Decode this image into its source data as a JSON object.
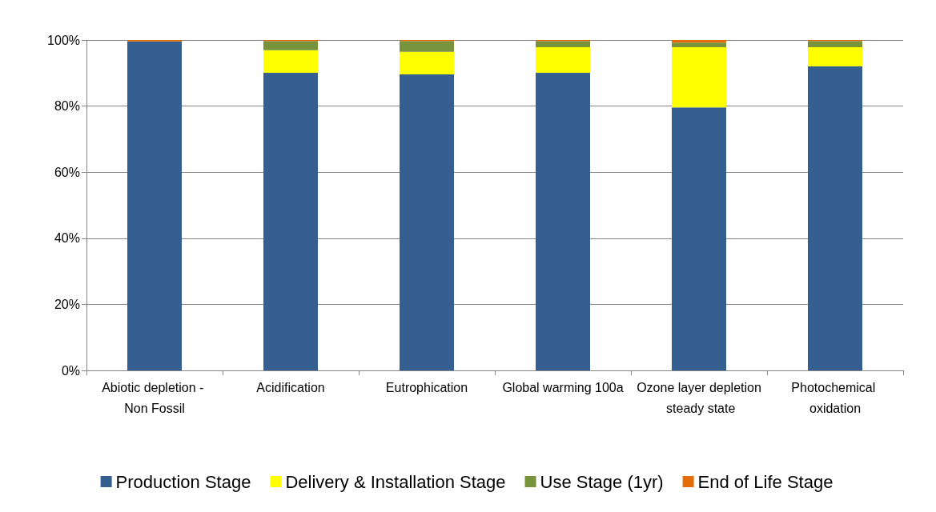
{
  "chart_data": {
    "type": "bar",
    "stacked": true,
    "categories": [
      "Abiotic depletion - Non Fossil",
      "Acidification",
      "Eutrophication",
      "Global warming 100a",
      "Ozone layer depletion steady state",
      "Photochemical oxidation"
    ],
    "series": [
      {
        "name": "Production Stage",
        "color": "#355f91",
        "values": [
          99.6,
          90.1,
          89.6,
          90.1,
          79.6,
          92.0
        ]
      },
      {
        "name": "Delivery & Installation Stage",
        "color": "#ffff00",
        "values": [
          0,
          6.8,
          6.8,
          7.7,
          18.2,
          5.8
        ]
      },
      {
        "name": "Use Stage (1yr)",
        "color": "#77933c",
        "values": [
          0,
          2.8,
          3.3,
          1.9,
          1.4,
          1.9
        ]
      },
      {
        "name": "End of Life Stage",
        "color": "#e46c0a",
        "values": [
          0.4,
          0.3,
          0.3,
          0.3,
          0.8,
          0.3
        ]
      }
    ],
    "ylim": [
      0,
      100
    ],
    "yticks": [
      {
        "value": 0,
        "label": "0%"
      },
      {
        "value": 20,
        "label": "20%"
      },
      {
        "value": 40,
        "label": "40%"
      },
      {
        "value": 60,
        "label": "60%"
      },
      {
        "value": 80,
        "label": "80%"
      },
      {
        "value": 100,
        "label": "100%"
      }
    ],
    "grid": "y",
    "legend": "bottom"
  }
}
